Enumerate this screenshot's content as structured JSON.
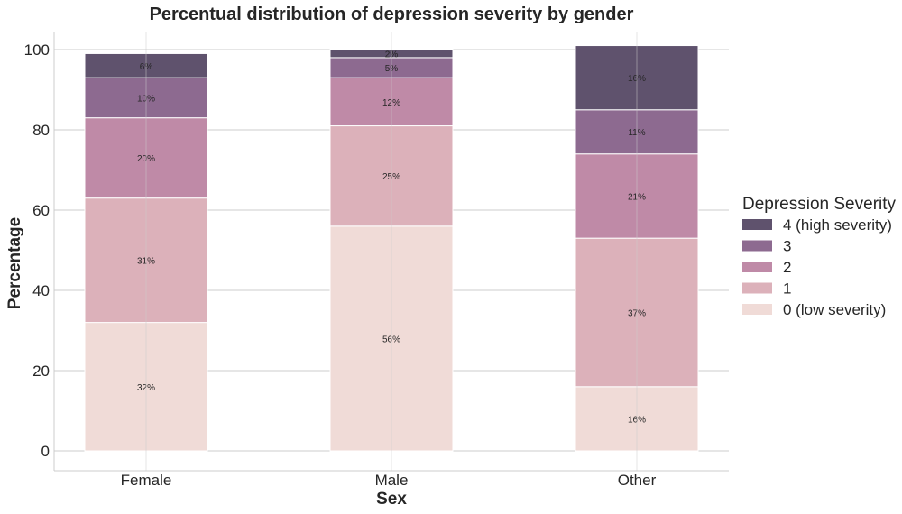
{
  "chart_data": {
    "type": "bar",
    "stacked": true,
    "title": "Percentual distribution of depression severity by gender",
    "xlabel": "Sex",
    "ylabel": "Percentage",
    "ylim": [
      0,
      100
    ],
    "yticks": [
      0,
      20,
      40,
      60,
      80,
      100
    ],
    "grid": true,
    "categories": [
      "Female",
      "Male",
      "Other"
    ],
    "series": [
      {
        "name": "0 (low severity)",
        "values": [
          32,
          56,
          16
        ],
        "labels": [
          "32%",
          "56%",
          "16%"
        ],
        "color": "#f0dbd7"
      },
      {
        "name": "1",
        "values": [
          31,
          25,
          37
        ],
        "labels": [
          "31%",
          "25%",
          "37%"
        ],
        "color": "#dcb1ba"
      },
      {
        "name": "2",
        "values": [
          20,
          12,
          21
        ],
        "labels": [
          "20%",
          "12%",
          "21%"
        ],
        "color": "#bf8aa7"
      },
      {
        "name": "3",
        "values": [
          10,
          5,
          11
        ],
        "labels": [
          "10%",
          "5%",
          "11%"
        ],
        "color": "#8d6a90"
      },
      {
        "name": "4 (high severity)",
        "values": [
          6,
          2,
          16
        ],
        "labels": [
          "6%",
          "2%",
          "16%"
        ],
        "color": "#5f526d"
      }
    ],
    "legend": {
      "title": "Depression Severity",
      "placement": "right",
      "order": [
        "4 (high severity)",
        "3",
        "2",
        "1",
        "0 (low severity)"
      ]
    }
  }
}
